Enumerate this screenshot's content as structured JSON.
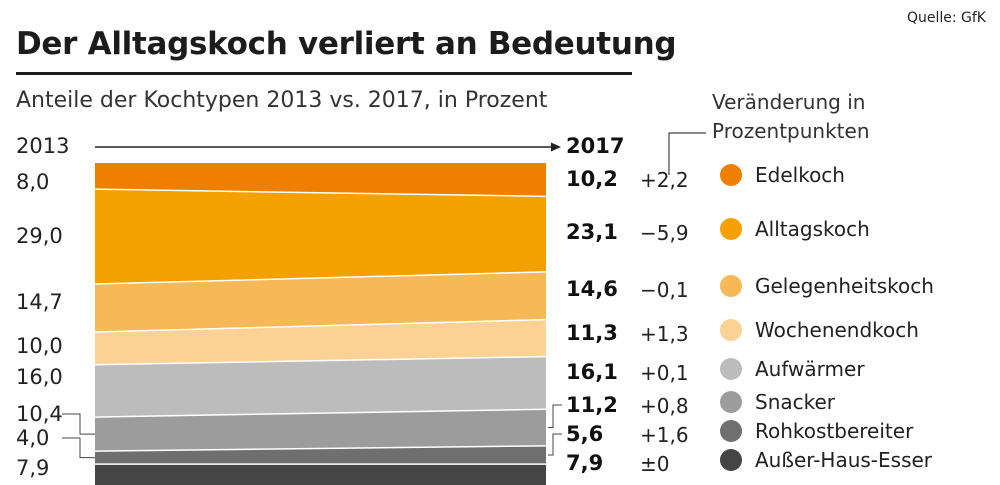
{
  "source": "Quelle: GfK",
  "title": "Der Alltagskoch verliert an Bedeutung",
  "subtitle": "Anteile der Kochtypen 2013 vs. 2017, in Prozent",
  "change_header": [
    "Veränderung in",
    "Prozentpunkten"
  ],
  "chart_data": {
    "type": "area",
    "title": "Der Alltagskoch verliert an Bedeutung",
    "subtitle": "Anteile der Kochtypen 2013 vs. 2017, in Prozent",
    "x": [
      "2013",
      "2017"
    ],
    "x_labels": [
      "2013",
      "2017"
    ],
    "series": [
      {
        "name": "Edelkoch",
        "values": [
          8.0,
          10.2
        ],
        "labels": [
          "8,0",
          "10,2"
        ],
        "change": "+2,2",
        "color": "#ee7f00"
      },
      {
        "name": "Alltagskoch",
        "values": [
          29.0,
          23.1
        ],
        "labels": [
          "29,0",
          "23,1"
        ],
        "change": "−5,9",
        "color": "#f4a100"
      },
      {
        "name": "Gelegenheitskoch",
        "values": [
          14.7,
          14.6
        ],
        "labels": [
          "14,7",
          "14,6"
        ],
        "change": "−0,1",
        "color": "#f7b957"
      },
      {
        "name": "Wochenendkoch",
        "values": [
          10.0,
          11.3
        ],
        "labels": [
          "10,0",
          "11,3"
        ],
        "change": "+1,3",
        "color": "#fbd293"
      },
      {
        "name": "Aufwärmer",
        "values": [
          16.0,
          16.1
        ],
        "labels": [
          "16,0",
          "16,1"
        ],
        "change": "+0,1",
        "color": "#bdbcbc"
      },
      {
        "name": "Snacker",
        "values": [
          10.4,
          11.2
        ],
        "labels": [
          "10,4",
          "11,2"
        ],
        "change": "+0,8",
        "color": "#9c9c9c"
      },
      {
        "name": "Rohkostbereiter",
        "values": [
          4.0,
          5.6
        ],
        "labels": [
          "4,0",
          "5,6"
        ],
        "change": "+1,6",
        "color": "#6f6f6f"
      },
      {
        "name": "Außer-Haus-Esser",
        "values": [
          7.9,
          7.9
        ],
        "labels": [
          "7,9",
          "7,9"
        ],
        "change": "±0",
        "color": "#454545"
      }
    ]
  }
}
